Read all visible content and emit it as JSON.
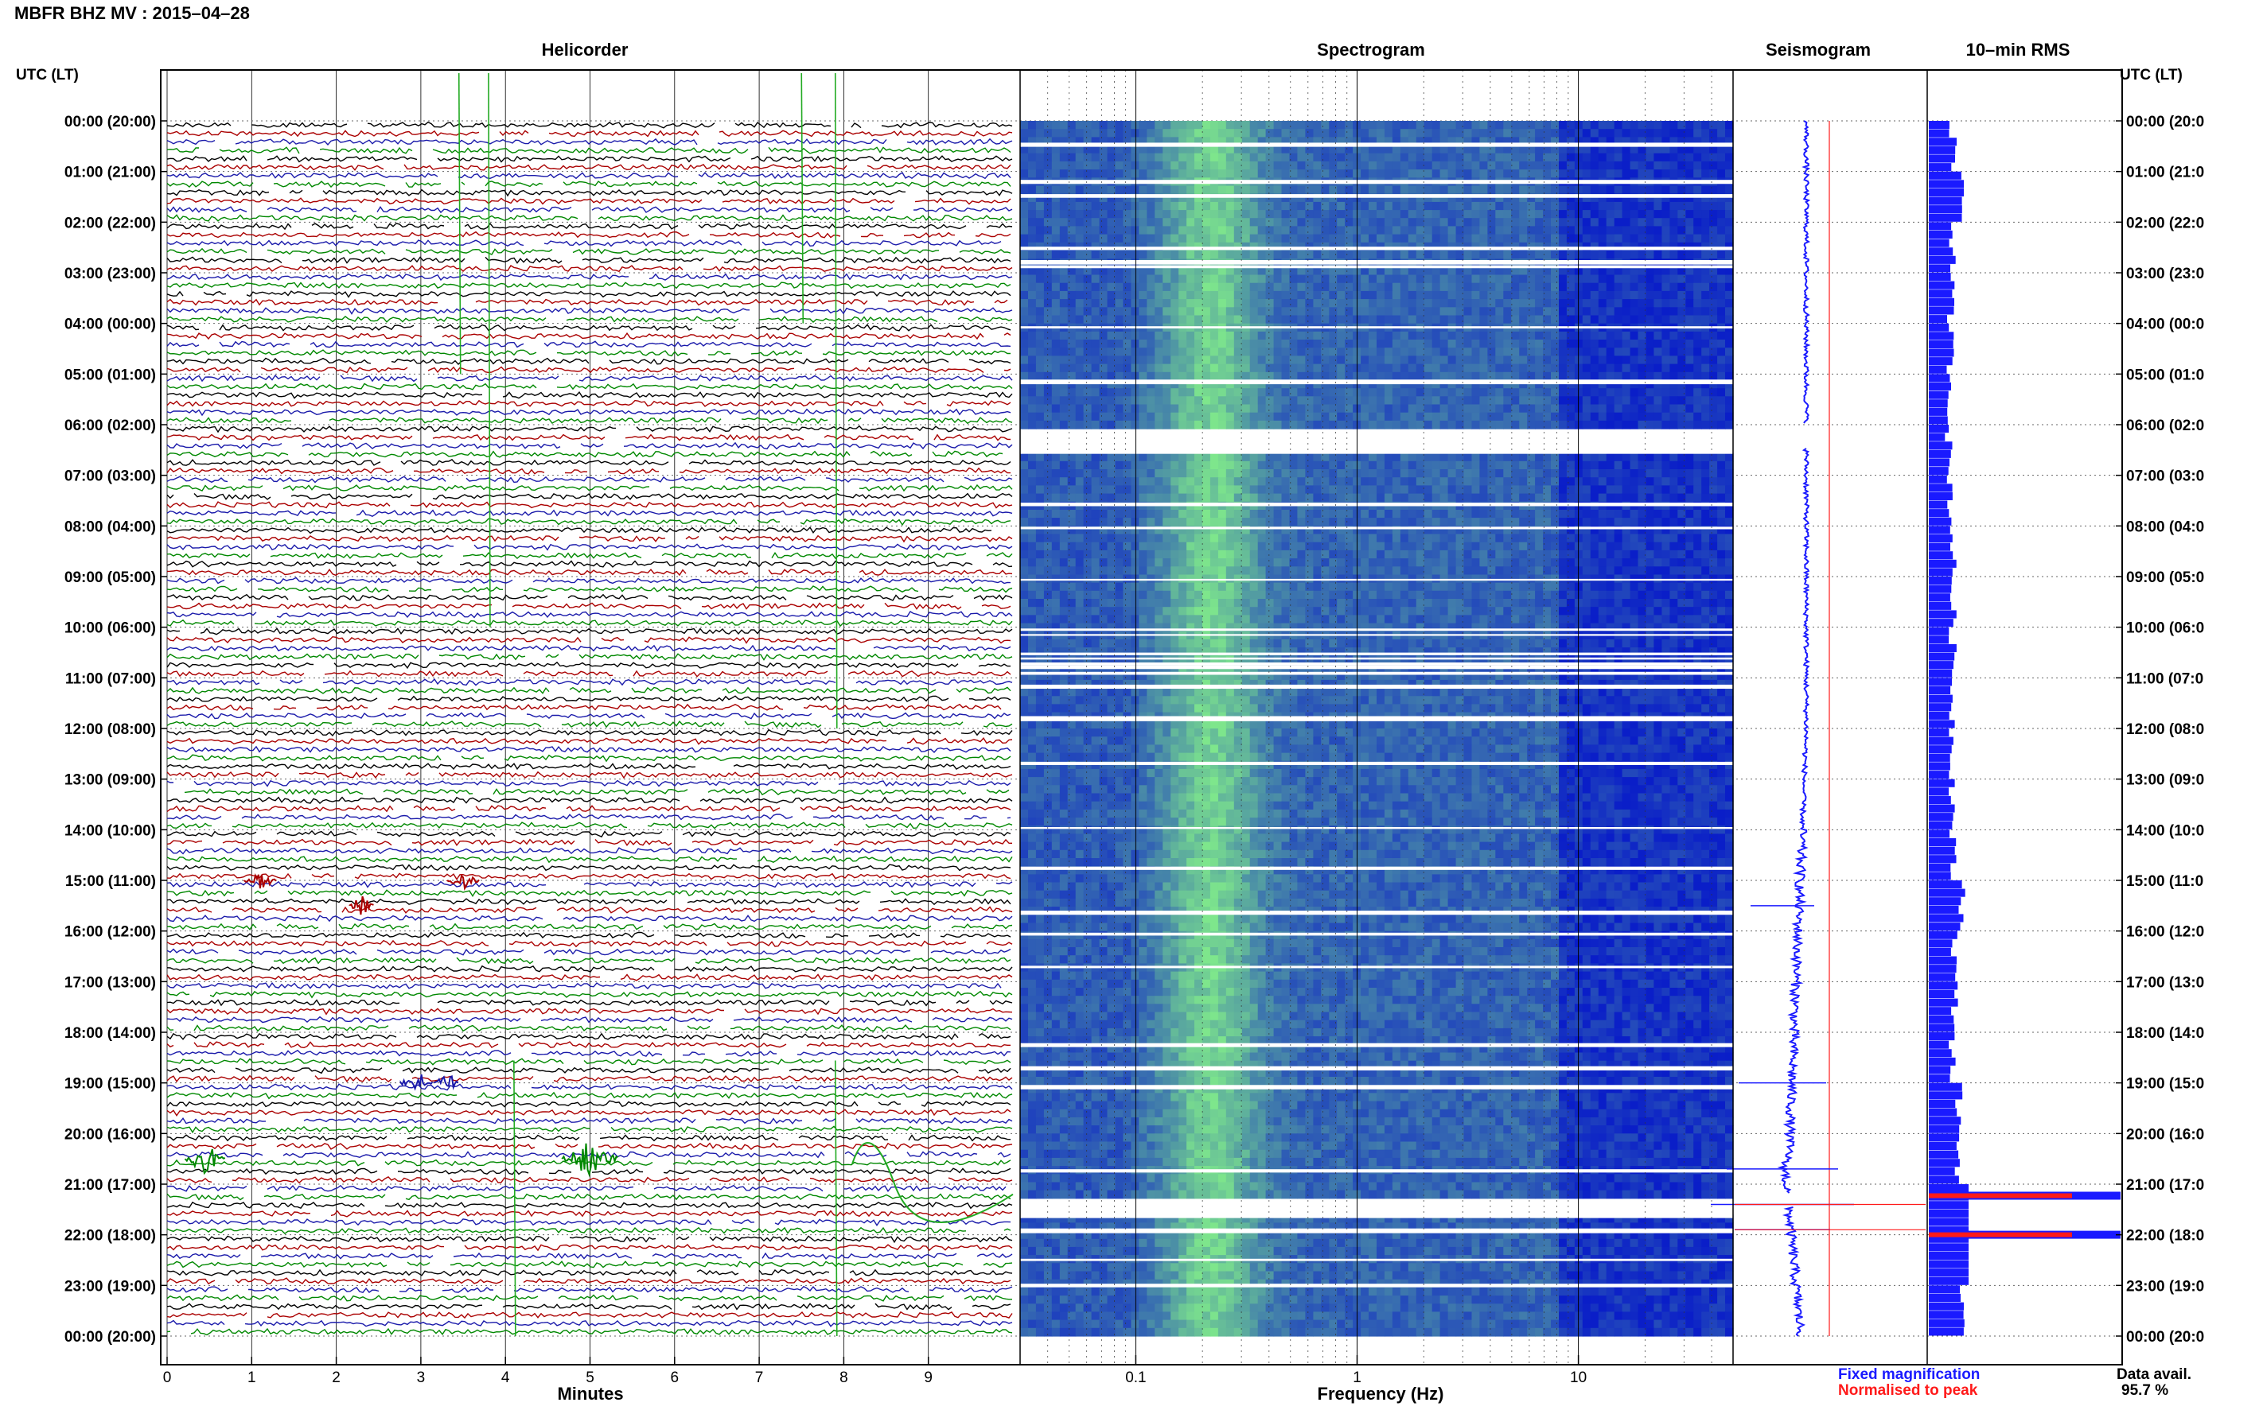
{
  "header": {
    "station_title": "MBFR BHZ MV : 2015–04–28"
  },
  "panels": {
    "helicorder": "Helicorder",
    "spectrogram": "Spectrogram",
    "seismogram": "Seismogram",
    "rms": "10–min RMS"
  },
  "axes": {
    "left_header": "UTC (LT)",
    "right_header": "UTC (LT)",
    "time_labels": [
      "00:00 (20:00)",
      "01:00 (21:00)",
      "02:00 (22:00)",
      "03:00 (23:00)",
      "04:00 (00:00)",
      "05:00 (01:00)",
      "06:00 (02:00)",
      "07:00 (03:00)",
      "08:00 (04:00)",
      "09:00 (05:00)",
      "10:00 (06:00)",
      "11:00 (07:00)",
      "12:00 (08:00)",
      "13:00 (09:00)",
      "14:00 (10:00)",
      "15:00 (11:00)",
      "16:00 (12:00)",
      "17:00 (13:00)",
      "18:00 (14:00)",
      "19:00 (15:00)",
      "20:00 (16:00)",
      "21:00 (17:00)",
      "22:00 (18:00)",
      "23:00 (19:00)",
      "00:00 (20:00)"
    ],
    "right_time_labels": [
      "00:00 (20:0",
      "01:00 (21:0",
      "02:00 (22:0",
      "03:00 (23:0",
      "04:00 (00:0",
      "05:00 (01:0",
      "06:00 (02:0",
      "07:00 (03:0",
      "08:00 (04:0",
      "09:00 (05:0",
      "10:00 (06:0",
      "11:00 (07:0",
      "12:00 (08:0",
      "13:00 (09:0",
      "14:00 (10:0",
      "15:00 (11:0",
      "16:00 (12:0",
      "17:00 (13:0",
      "18:00 (14:0",
      "19:00 (15:0",
      "20:00 (16:0",
      "21:00 (17:0",
      "22:00 (18:0",
      "23:00 (19:0",
      "00:00 (20:0"
    ],
    "minutes_label": "Minutes",
    "minutes_ticks": [
      "0",
      "1",
      "2",
      "3",
      "4",
      "5",
      "6",
      "7",
      "8",
      "9"
    ],
    "frequency_label": "Frequency (Hz)",
    "frequency_ticks": [
      "0.1",
      "1",
      "10"
    ]
  },
  "legend": {
    "fixed": "Fixed magnification",
    "normalised": "Normalised to peak",
    "fixed_color": "#1a1aff",
    "normalised_color": "#ff1a1a"
  },
  "data_availability": {
    "label": "Data avail.",
    "value": "95.7 %"
  },
  "colors": {
    "trace_cycle": [
      "#000000",
      "#aa0000",
      "#1a1aaa",
      "#008800"
    ],
    "spectro_low": "#0a1ec8",
    "spectro_high": "#7ee68c",
    "rms_bar": "#1a1aff",
    "rms_spike": "#ff1a1a"
  },
  "chart_data": [
    {
      "type": "line",
      "title": "Helicorder",
      "xlabel": "Minutes",
      "xlim": [
        0,
        10
      ],
      "ylim": [
        "00:00",
        "24:00"
      ],
      "trace_line_minutes": 10,
      "traces_per_hour": 6,
      "notable_events": [
        {
          "time": "19:00",
          "minute_range": [
            2.7,
            3.4
          ],
          "note": "burst"
        },
        {
          "time": "20:30",
          "minute_range": [
            4.5,
            5.5
          ],
          "note": "burst"
        },
        {
          "time": "20:10",
          "minute_range": [
            8.2,
            9.0
          ],
          "note": "large transient"
        }
      ]
    },
    {
      "type": "heatmap",
      "title": "Spectrogram",
      "xlabel": "Frequency (Hz)",
      "xscale": "log",
      "xlim": [
        0.03,
        50
      ],
      "peak_energy_hz": [
        0.15,
        0.35
      ],
      "data_gaps_utc": [
        "06:00–06:30",
        "21:15–21:25"
      ]
    },
    {
      "type": "line",
      "title": "Seismogram",
      "series": [
        {
          "name": "Fixed magnification"
        },
        {
          "name": "Normalised to peak"
        }
      ]
    },
    {
      "type": "bar",
      "title": "10–min RMS",
      "orientation": "horizontal",
      "hours": [
        0,
        1,
        2,
        3,
        4,
        5,
        6,
        7,
        8,
        9,
        10,
        11,
        12,
        13,
        14,
        15,
        16,
        17,
        18,
        19,
        20,
        21,
        22,
        23
      ],
      "relative_rms": [
        0.6,
        0.85,
        0.6,
        0.55,
        0.55,
        0.55,
        0.5,
        0.55,
        0.6,
        0.6,
        0.6,
        0.6,
        0.6,
        0.6,
        0.6,
        0.85,
        0.65,
        0.65,
        0.6,
        0.75,
        0.75,
        5.0,
        5.0,
        0.8
      ],
      "red_spikes_utc": [
        "21:15",
        "22:00"
      ]
    }
  ]
}
